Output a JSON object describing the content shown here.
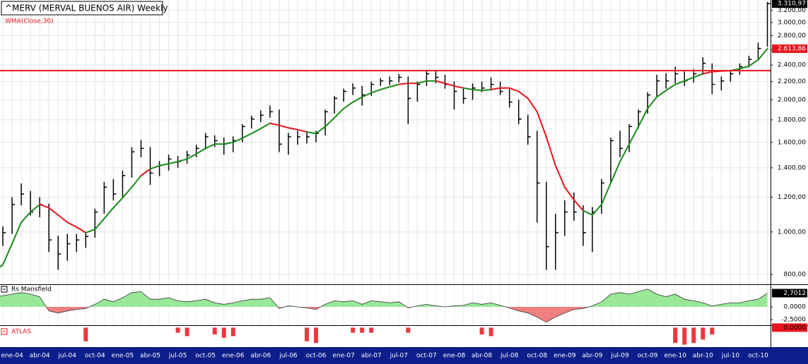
{
  "chart_data": [
    {
      "type": "ohlc",
      "title": "^MERV (MERVAL BUENOS AIR) Weekly",
      "categories": [
        null,
        null,
        "ene-04",
        null,
        null,
        "abr-04",
        null,
        null,
        "jul-04",
        null,
        null,
        "oct-04",
        null,
        null,
        "ene-05",
        null,
        null,
        "abr-05",
        null,
        null,
        "jul-05",
        null,
        null,
        "oct-05",
        null,
        null,
        "ene-06",
        null,
        null,
        "abr-06",
        null,
        null,
        "jul-06",
        null,
        null,
        "oct-06",
        null,
        null,
        "ene-07",
        null,
        null,
        "abr-07",
        null,
        null,
        "jul-07",
        null,
        null,
        "oct-07",
        null,
        null,
        "ene-08",
        null,
        null,
        "abr-08",
        null,
        null,
        "jul-08",
        null,
        null,
        "oct-08",
        null,
        null,
        "ene-09",
        null,
        null,
        "abr-09",
        null,
        null,
        "jul-09",
        null,
        null,
        "oct-09",
        null,
        null,
        "ene-10",
        null,
        null,
        "abr-10",
        null,
        null,
        "jul-10",
        null,
        null,
        "oct-10",
        null
      ],
      "high": [
        990,
        1030,
        1200,
        1290,
        1240,
        1200,
        1160,
        980,
        990,
        990,
        1000,
        1130,
        1300,
        1320,
        1380,
        1560,
        1620,
        1560,
        1450,
        1500,
        1490,
        1530,
        1580,
        1680,
        1660,
        1640,
        1650,
        1760,
        1840,
        1890,
        1940,
        1900,
        1680,
        1700,
        1690,
        1700,
        1900,
        2040,
        2120,
        2180,
        2150,
        2200,
        2240,
        2260,
        2290,
        2260,
        2200,
        2340,
        2330,
        2280,
        2200,
        2120,
        2180,
        2200,
        2250,
        2200,
        2120,
        2000,
        1850,
        1700,
        1300,
        1100,
        1180,
        1230,
        1150,
        1140,
        1320,
        1640,
        1700,
        1760,
        1900,
        2080,
        2280,
        2300,
        2380,
        2320,
        2350,
        2500,
        2420,
        2260,
        2340,
        2420,
        2520,
        2700,
        3340
      ],
      "low": [
        900,
        930,
        990,
        1150,
        1090,
        1080,
        900,
        820,
        860,
        900,
        920,
        970,
        1100,
        1180,
        1200,
        1330,
        1480,
        1280,
        1340,
        1380,
        1400,
        1430,
        1480,
        1540,
        1560,
        1500,
        1520,
        1600,
        1720,
        1780,
        1820,
        1520,
        1500,
        1580,
        1590,
        1600,
        1660,
        1860,
        1980,
        2050,
        1940,
        2040,
        2150,
        2160,
        2190,
        1760,
        1980,
        2150,
        2180,
        2120,
        1900,
        1960,
        2000,
        2080,
        2100,
        2050,
        1920,
        1760,
        1580,
        1050,
        820,
        820,
        980,
        1060,
        930,
        900,
        1100,
        1290,
        1480,
        1520,
        1720,
        1860,
        2030,
        2120,
        2180,
        2150,
        2190,
        2280,
        2060,
        2100,
        2200,
        2280,
        2370,
        2460,
        2640
      ],
      "values": [
        940,
        996,
        1155,
        1220,
        1110,
        1155,
        959,
        891,
        940,
        959,
        977,
        1110,
        1265,
        1220,
        1344,
        1522,
        1550,
        1362,
        1416,
        1466,
        1446,
        1496,
        1550,
        1647,
        1614,
        1585,
        1614,
        1738,
        1808,
        1844,
        1878,
        1585,
        1647,
        1647,
        1647,
        1676,
        1878,
        2015,
        2090,
        2127,
        2051,
        2168,
        2208,
        2208,
        2250,
        2015,
        2168,
        2292,
        2250,
        2168,
        2090,
        2015,
        2127,
        2127,
        2168,
        2090,
        1976,
        1808,
        1647,
        1293,
        926,
        996,
        1110,
        1110,
        996,
        1110,
        1293,
        1614,
        1550,
        1738,
        1878,
        2051,
        2208,
        2208,
        2292,
        2208,
        2292,
        2421,
        2168,
        2208,
        2292,
        2379,
        2472,
        2618,
        3310.97
      ],
      "value_labels": {
        "84": "3.310,97"
      },
      "color": "#000000",
      "overlay": {
        "name": "WMA(Close,30)",
        "values": [
          812,
          842,
          940,
          1052,
          1110,
          1155,
          1135,
          1093,
          1052,
          1026,
          996,
          1014,
          1072,
          1135,
          1196,
          1265,
          1344,
          1392,
          1416,
          1430,
          1446,
          1466,
          1506,
          1550,
          1585,
          1585,
          1600,
          1635,
          1676,
          1720,
          1768,
          1750,
          1726,
          1710,
          1690,
          1676,
          1738,
          1820,
          1910,
          1976,
          2030,
          2074,
          2110,
          2140,
          2168,
          2180,
          2180,
          2208,
          2208,
          2180,
          2150,
          2127,
          2110,
          2100,
          2110,
          2127,
          2127,
          2090,
          2015,
          1878,
          1647,
          1416,
          1265,
          1183,
          1118,
          1093,
          1155,
          1293,
          1446,
          1585,
          1738,
          1910,
          2030,
          2100,
          2168,
          2208,
          2250,
          2292,
          2316,
          2325,
          2330,
          2353,
          2386,
          2466,
          2613.86
        ],
        "value_labels": {
          "84": "2.613,86"
        },
        "up_color": "#1a8a1a",
        "down_color": "#e8141c"
      },
      "hline": {
        "value": 2330,
        "color": "#e8141c"
      },
      "log_scale": true,
      "grid": true,
      "ylim": [
        760,
        3350
      ],
      "yticks": [
        {
          "value": 800,
          "label": "800,00"
        },
        {
          "value": 1000,
          "label": "1.000,00"
        },
        {
          "value": 1200,
          "label": "1.200,00"
        },
        {
          "value": 1400,
          "label": "1.400,00"
        },
        {
          "value": 1600,
          "label": "1.600,00"
        },
        {
          "value": 1800,
          "label": "1.800,00"
        },
        {
          "value": 2000,
          "label": "2.000,00"
        },
        {
          "value": 2200,
          "label": "2.200,00"
        },
        {
          "value": 2400,
          "label": "2.400,00"
        },
        {
          "value": 2600,
          "label": "2.600,00"
        },
        {
          "value": 2800,
          "label": "2.800,00"
        },
        {
          "value": 3000,
          "label": "3.000,00"
        },
        {
          "value": 3200,
          "label": "3.200,00"
        }
      ]
    },
    {
      "type": "area",
      "title": "Rs Mansfield",
      "values": [
        2.0,
        2.2,
        2.5,
        2.8,
        2.5,
        2.0,
        -0.8,
        -1.2,
        -0.8,
        -0.5,
        -0.3,
        0.5,
        1.5,
        1.0,
        1.8,
        2.8,
        3.0,
        1.5,
        1.5,
        1.8,
        1.2,
        1.0,
        1.2,
        1.5,
        0.8,
        0.5,
        0.8,
        1.2,
        1.5,
        1.5,
        1.8,
        -0.3,
        0.2,
        0.0,
        -0.2,
        -0.5,
        0.5,
        1.2,
        1.0,
        1.2,
        0.5,
        1.2,
        1.0,
        0.8,
        1.0,
        -0.2,
        0.2,
        0.5,
        0.2,
        0.0,
        0.2,
        0.3,
        0.8,
        0.5,
        0.8,
        0.3,
        -0.2,
        -0.8,
        -1.2,
        -2.0,
        -3.0,
        -2.0,
        -1.2,
        -0.5,
        -0.3,
        0.2,
        1.0,
        2.5,
        2.8,
        2.5,
        3.0,
        3.5,
        2.5,
        2.0,
        2.5,
        1.5,
        1.2,
        0.8,
        0.2,
        0.5,
        0.8,
        0.8,
        1.2,
        1.5,
        2.7012
      ],
      "value_labels": {
        "84": "2,7012"
      },
      "ylim": [
        -3.6,
        4.3
      ],
      "yticks": [
        {
          "value": 0,
          "label": "0,0000"
        },
        {
          "value": -2.5,
          "label": "-2,5000"
        }
      ],
      "pos_color": "#98e898",
      "neg_color": "#f08080",
      "line_color": "#333333"
    },
    {
      "type": "bar",
      "title": "ATLAS",
      "values": [
        0,
        0,
        0,
        0,
        0,
        0,
        0,
        0,
        0,
        0,
        -0.8,
        0,
        0,
        0,
        0,
        0,
        0,
        0,
        0,
        0,
        -0.3,
        -0.5,
        0,
        0,
        -0.4,
        -0.6,
        -0.5,
        0,
        0,
        0,
        0,
        0,
        0,
        0,
        -0.8,
        -0.9,
        0,
        0,
        0,
        -0.3,
        -0.3,
        -0.3,
        0,
        0,
        0,
        -0.3,
        0,
        0,
        0,
        0,
        0,
        0,
        0,
        -0.4,
        -0.5,
        0,
        0,
        0,
        0,
        0,
        0,
        0,
        0,
        0,
        0,
        0,
        0,
        0,
        0,
        0,
        0,
        0,
        0,
        0,
        -0.9,
        -1.0,
        -0.9,
        -0.7,
        -0.4,
        0,
        0,
        0,
        0,
        0,
        0
      ],
      "value_labels": {
        "84": "0,0000"
      },
      "ylim": [
        -1.1,
        0.1
      ],
      "color": "#e8141c"
    }
  ]
}
